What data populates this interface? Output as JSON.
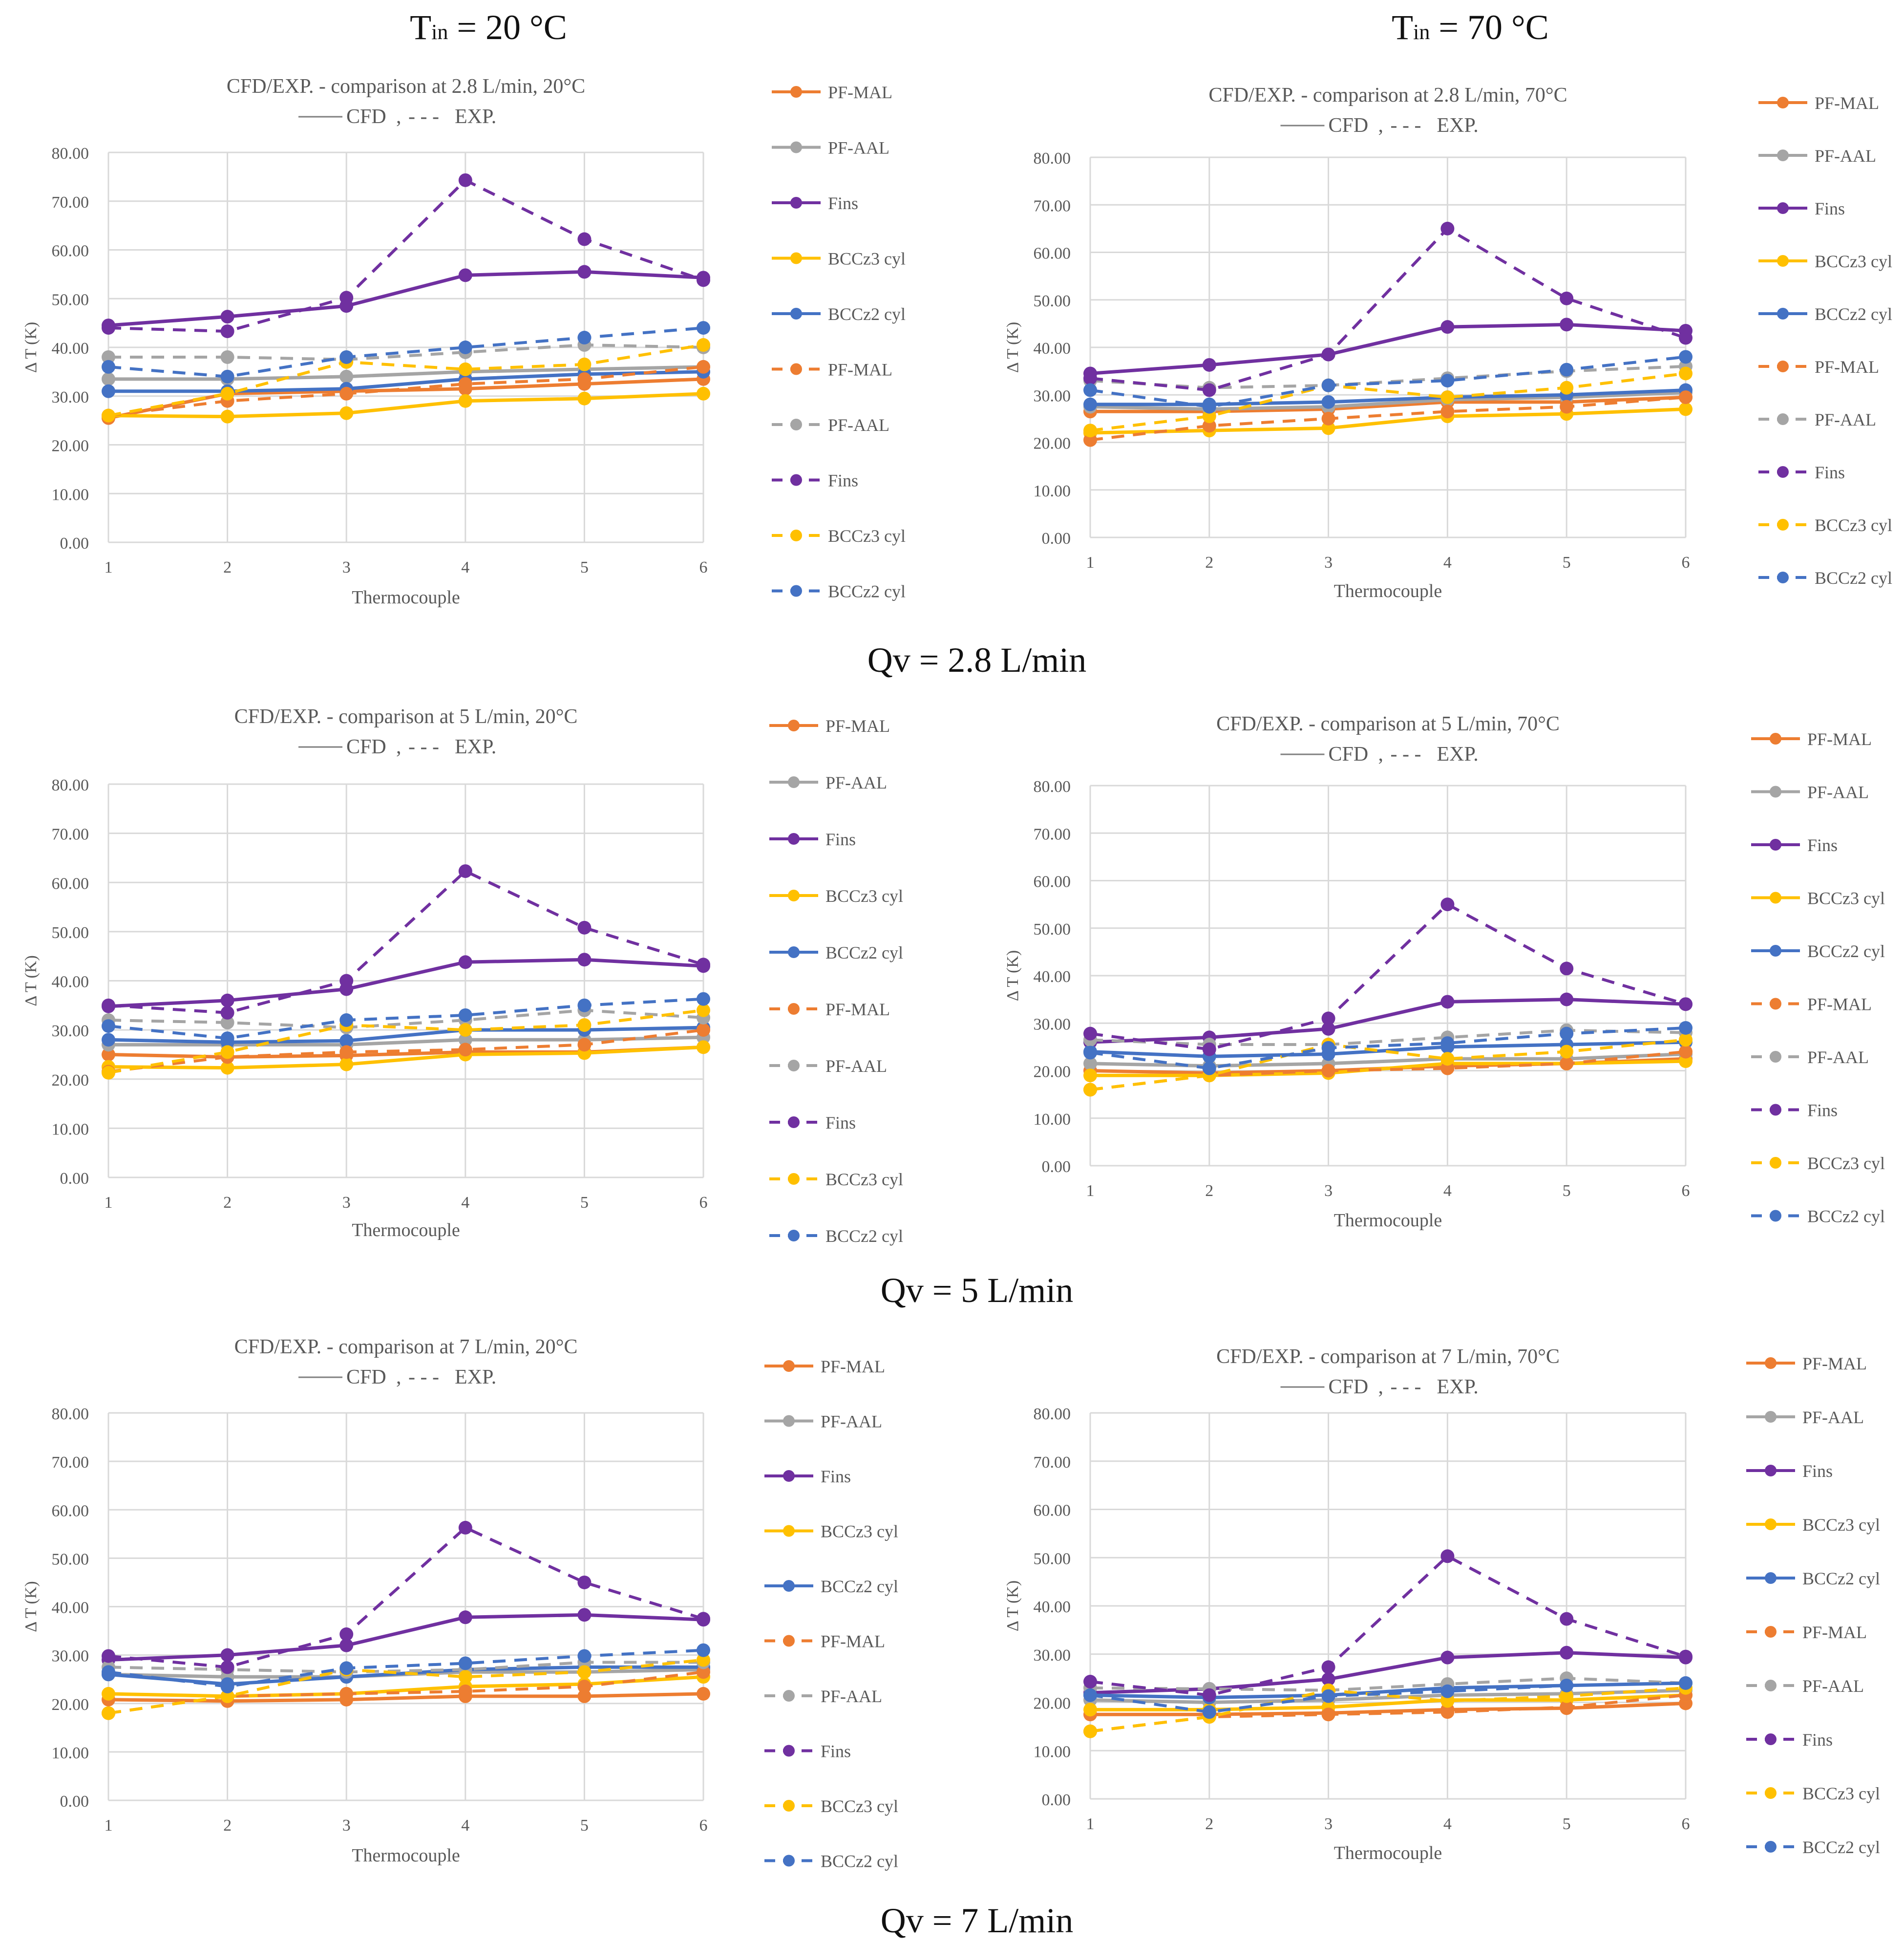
{
  "column_headers": [
    {
      "prefix": "T",
      "subscript": "in",
      "suffix": " = 20 °C"
    },
    {
      "prefix": "T",
      "subscript": "in",
      "suffix": " = 70 °C"
    }
  ],
  "row_labels": [
    "Qv = 2.8 L/min",
    "Qv = 5 L/min",
    "Qv = 7 L/min"
  ],
  "style": {
    "series_colors": {
      "PF-MAL": "#ED7D31",
      "PF-AAL": "#A5A5A5",
      "Fins": "#7030A0",
      "BCCz3 cyl": "#FFC000",
      "BCCz2 cyl": "#4472C4"
    },
    "grid_color": "#D9D9D9",
    "text_color": "#595959"
  },
  "chart_data": [
    {
      "type": "line",
      "title": "CFD/EXP. - comparison at 2.8 L/min, 20°C",
      "subtitle_cfd": "CFD",
      "subtitle_exp": "EXP.",
      "subtitle_sep": ",",
      "subtitle_dash_glyph": "- - -",
      "xlabel": "Thermocouple",
      "ylabel": "Δ T (K)",
      "x": [
        1,
        2,
        3,
        4,
        5,
        6
      ],
      "ylim": [
        0,
        80
      ],
      "yticks": [
        "0.00",
        "10.00",
        "20.00",
        "30.00",
        "40.00",
        "50.00",
        "60.00",
        "70.00",
        "80.00"
      ],
      "legend_position": "right",
      "series": [
        {
          "name": "PF-MAL",
          "style": "CFD",
          "values": [
            25.5,
            30.5,
            31.0,
            31.5,
            32.5,
            33.5
          ]
        },
        {
          "name": "PF-AAL",
          "style": "CFD",
          "values": [
            33.5,
            33.5,
            34.0,
            35.0,
            35.5,
            36.0
          ]
        },
        {
          "name": "Fins",
          "style": "CFD",
          "values": [
            44.5,
            46.3,
            48.5,
            54.8,
            55.5,
            54.3
          ]
        },
        {
          "name": "BCCz3 cyl",
          "style": "CFD",
          "values": [
            26.0,
            25.8,
            26.5,
            29.0,
            29.5,
            30.5
          ]
        },
        {
          "name": "BCCz2 cyl",
          "style": "CFD",
          "values": [
            31.0,
            31.0,
            31.5,
            33.5,
            34.5,
            35.0
          ]
        },
        {
          "name": "PF-MAL",
          "style": "EXP",
          "values": [
            26.0,
            29.0,
            30.5,
            32.5,
            33.5,
            36.0
          ]
        },
        {
          "name": "PF-AAL",
          "style": "EXP",
          "values": [
            38.0,
            38.0,
            37.5,
            39.0,
            40.5,
            40.0
          ]
        },
        {
          "name": "Fins",
          "style": "EXP",
          "values": [
            44.0,
            43.3,
            50.2,
            74.3,
            62.2,
            53.8
          ]
        },
        {
          "name": "BCCz3 cyl",
          "style": "EXP",
          "values": [
            26.0,
            30.5,
            37.0,
            35.5,
            36.5,
            40.5
          ]
        },
        {
          "name": "BCCz2 cyl",
          "style": "EXP",
          "values": [
            36.0,
            34.0,
            38.0,
            40.0,
            42.0,
            44.0
          ]
        }
      ]
    },
    {
      "type": "line",
      "title": "CFD/EXP. - comparison at 2.8 L/min, 70°C",
      "subtitle_cfd": "CFD",
      "subtitle_exp": "EXP.",
      "subtitle_sep": ",",
      "subtitle_dash_glyph": "- - -",
      "xlabel": "Thermocouple",
      "ylabel": "Δ T (K)",
      "x": [
        1,
        2,
        3,
        4,
        5,
        6
      ],
      "ylim": [
        0,
        80
      ],
      "yticks": [
        "0.00",
        "10.00",
        "20.00",
        "30.00",
        "40.00",
        "50.00",
        "60.00",
        "70.00",
        "80.00"
      ],
      "legend_position": "right",
      "series": [
        {
          "name": "PF-MAL",
          "style": "CFD",
          "values": [
            26.5,
            26.5,
            27.0,
            28.5,
            28.5,
            29.5
          ]
        },
        {
          "name": "PF-AAL",
          "style": "CFD",
          "values": [
            27.5,
            27.0,
            27.5,
            29.0,
            29.5,
            30.5
          ]
        },
        {
          "name": "Fins",
          "style": "CFD",
          "values": [
            34.5,
            36.3,
            38.5,
            44.3,
            44.8,
            43.5
          ]
        },
        {
          "name": "BCCz3 cyl",
          "style": "CFD",
          "values": [
            22.0,
            22.5,
            23.0,
            25.5,
            26.0,
            27.0
          ]
        },
        {
          "name": "BCCz2 cyl",
          "style": "CFD",
          "values": [
            28.0,
            28.0,
            28.5,
            29.5,
            30.0,
            31.0
          ]
        },
        {
          "name": "PF-MAL",
          "style": "EXP",
          "values": [
            20.5,
            23.5,
            25.0,
            26.5,
            27.5,
            29.5
          ]
        },
        {
          "name": "PF-AAL",
          "style": "EXP",
          "values": [
            33.0,
            31.5,
            32.0,
            33.5,
            35.0,
            36.0
          ]
        },
        {
          "name": "Fins",
          "style": "EXP",
          "values": [
            33.5,
            31.0,
            38.5,
            65.0,
            50.3,
            42.0
          ]
        },
        {
          "name": "BCCz3 cyl",
          "style": "EXP",
          "values": [
            22.5,
            25.5,
            32.0,
            29.5,
            31.5,
            34.5
          ]
        },
        {
          "name": "BCCz2 cyl",
          "style": "EXP",
          "values": [
            31.0,
            27.5,
            32.0,
            33.0,
            35.3,
            38.0
          ]
        }
      ]
    },
    {
      "type": "line",
      "title": "CFD/EXP. - comparison at 5 L/min, 20°C",
      "subtitle_cfd": "CFD",
      "subtitle_exp": "EXP.",
      "subtitle_sep": ",",
      "subtitle_dash_glyph": "- - -",
      "xlabel": "Thermocouple",
      "ylabel": "Δ T (K)",
      "x": [
        1,
        2,
        3,
        4,
        5,
        6
      ],
      "ylim": [
        0,
        80
      ],
      "yticks": [
        "0.00",
        "10.00",
        "20.00",
        "30.00",
        "40.00",
        "50.00",
        "60.00",
        "70.00",
        "80.00"
      ],
      "legend_position": "right",
      "series": [
        {
          "name": "PF-MAL",
          "style": "CFD",
          "values": [
            25.0,
            24.5,
            24.8,
            25.5,
            25.5,
            26.5
          ]
        },
        {
          "name": "PF-AAL",
          "style": "CFD",
          "values": [
            27.0,
            27.0,
            27.0,
            28.0,
            28.0,
            28.5
          ]
        },
        {
          "name": "Fins",
          "style": "CFD",
          "values": [
            34.8,
            36.0,
            38.3,
            43.8,
            44.3,
            43.0
          ]
        },
        {
          "name": "BCCz3 cyl",
          "style": "CFD",
          "values": [
            22.5,
            22.3,
            23.0,
            25.0,
            25.3,
            26.5
          ]
        },
        {
          "name": "BCCz2 cyl",
          "style": "CFD",
          "values": [
            28.0,
            27.5,
            27.8,
            30.0,
            30.0,
            30.5
          ]
        },
        {
          "name": "PF-MAL",
          "style": "EXP",
          "values": [
            21.5,
            24.5,
            25.5,
            26.0,
            27.0,
            30.0
          ]
        },
        {
          "name": "PF-AAL",
          "style": "EXP",
          "values": [
            32.0,
            31.5,
            30.5,
            32.0,
            34.0,
            32.5
          ]
        },
        {
          "name": "Fins",
          "style": "EXP",
          "values": [
            35.0,
            33.5,
            40.0,
            62.3,
            50.8,
            43.3
          ]
        },
        {
          "name": "BCCz3 cyl",
          "style": "EXP",
          "values": [
            21.3,
            25.5,
            31.0,
            30.0,
            31.0,
            34.0
          ]
        },
        {
          "name": "BCCz2 cyl",
          "style": "EXP",
          "values": [
            30.8,
            28.3,
            32.0,
            33.0,
            35.0,
            36.3
          ]
        }
      ]
    },
    {
      "type": "line",
      "title": "CFD/EXP. - comparison at 5 L/min, 70°C",
      "subtitle_cfd": "CFD",
      "subtitle_exp": "EXP.",
      "subtitle_sep": ",",
      "subtitle_dash_glyph": "- - -",
      "xlabel": "Thermocouple",
      "ylabel": "Δ T (K)",
      "x": [
        1,
        2,
        3,
        4,
        5,
        6
      ],
      "ylim": [
        0,
        80
      ],
      "yticks": [
        "0.00",
        "10.00",
        "20.00",
        "30.00",
        "40.00",
        "50.00",
        "60.00",
        "70.00",
        "80.00"
      ],
      "legend_position": "right",
      "series": [
        {
          "name": "PF-MAL",
          "style": "CFD",
          "values": [
            20.0,
            19.5,
            20.0,
            21.0,
            21.5,
            22.5
          ]
        },
        {
          "name": "PF-AAL",
          "style": "CFD",
          "values": [
            21.5,
            21.0,
            21.5,
            22.5,
            22.5,
            23.5
          ]
        },
        {
          "name": "Fins",
          "style": "CFD",
          "values": [
            26.0,
            27.0,
            28.8,
            34.5,
            35.0,
            34.0
          ]
        },
        {
          "name": "BCCz3 cyl",
          "style": "CFD",
          "values": [
            19.0,
            19.0,
            19.5,
            21.5,
            21.5,
            22.0
          ]
        },
        {
          "name": "BCCz2 cyl",
          "style": "CFD",
          "values": [
            24.0,
            23.0,
            23.5,
            25.0,
            25.5,
            26.0
          ]
        },
        {
          "name": "PF-MAL",
          "style": "EXP",
          "values": [
            16.0,
            19.0,
            20.0,
            20.5,
            21.5,
            24.0
          ]
        },
        {
          "name": "PF-AAL",
          "style": "EXP",
          "values": [
            26.5,
            25.5,
            25.5,
            27.0,
            28.5,
            28.0
          ]
        },
        {
          "name": "Fins",
          "style": "EXP",
          "values": [
            27.8,
            24.5,
            31.0,
            55.0,
            41.5,
            34.0
          ]
        },
        {
          "name": "BCCz3 cyl",
          "style": "EXP",
          "values": [
            16.0,
            19.0,
            25.5,
            22.5,
            24.0,
            26.5
          ]
        },
        {
          "name": "BCCz2 cyl",
          "style": "EXP",
          "values": [
            23.8,
            20.5,
            24.8,
            25.8,
            27.8,
            29.0
          ]
        }
      ]
    },
    {
      "type": "line",
      "title": "CFD/EXP. - comparison at 7 L/min, 20°C",
      "subtitle_cfd": "CFD",
      "subtitle_exp": "EXP.",
      "subtitle_sep": ",",
      "subtitle_dash_glyph": "- - -",
      "xlabel": "Thermocouple",
      "ylabel": "Δ T (K)",
      "x": [
        1,
        2,
        3,
        4,
        5,
        6
      ],
      "ylim": [
        0,
        80
      ],
      "yticks": [
        "0.00",
        "10.00",
        "20.00",
        "30.00",
        "40.00",
        "50.00",
        "60.00",
        "70.00",
        "80.00"
      ],
      "legend_position": "right",
      "series": [
        {
          "name": "PF-MAL",
          "style": "CFD",
          "values": [
            20.8,
            20.5,
            20.8,
            21.5,
            21.5,
            22.0
          ]
        },
        {
          "name": "PF-AAL",
          "style": "CFD",
          "values": [
            26.0,
            25.5,
            25.5,
            26.5,
            26.5,
            27.0
          ]
        },
        {
          "name": "Fins",
          "style": "CFD",
          "values": [
            29.0,
            30.0,
            32.0,
            37.8,
            38.3,
            37.3
          ]
        },
        {
          "name": "BCCz3 cyl",
          "style": "CFD",
          "values": [
            22.0,
            21.5,
            22.0,
            23.5,
            24.0,
            25.5
          ]
        },
        {
          "name": "BCCz2 cyl",
          "style": "CFD",
          "values": [
            26.0,
            24.0,
            25.5,
            27.0,
            27.5,
            27.5
          ]
        },
        {
          "name": "PF-MAL",
          "style": "EXP",
          "values": [
            18.0,
            21.5,
            22.0,
            22.5,
            23.5,
            26.5
          ]
        },
        {
          "name": "PF-AAL",
          "style": "EXP",
          "values": [
            27.5,
            27.0,
            26.5,
            27.0,
            28.5,
            28.5
          ]
        },
        {
          "name": "Fins",
          "style": "EXP",
          "values": [
            29.8,
            27.5,
            34.3,
            56.3,
            45.0,
            37.5
          ]
        },
        {
          "name": "BCCz3 cyl",
          "style": "EXP",
          "values": [
            18.0,
            21.5,
            27.0,
            25.5,
            26.5,
            29.0
          ]
        },
        {
          "name": "BCCz2 cyl",
          "style": "EXP",
          "values": [
            26.5,
            23.5,
            27.3,
            28.3,
            29.8,
            31.0
          ]
        }
      ]
    },
    {
      "type": "line",
      "title": "CFD/EXP. - comparison at 7 L/min, 70°C",
      "subtitle_cfd": "CFD",
      "subtitle_exp": "EXP.",
      "subtitle_sep": ",",
      "subtitle_dash_glyph": "- - -",
      "xlabel": "Thermocouple",
      "ylabel": "Δ T (K)",
      "x": [
        1,
        2,
        3,
        4,
        5,
        6
      ],
      "ylim": [
        0,
        80
      ],
      "yticks": [
        "0.00",
        "10.00",
        "20.00",
        "30.00",
        "40.00",
        "50.00",
        "60.00",
        "70.00",
        "80.00"
      ],
      "legend_position": "right",
      "series": [
        {
          "name": "PF-MAL",
          "style": "CFD",
          "values": [
            17.5,
            17.5,
            17.8,
            18.5,
            18.8,
            19.8
          ]
        },
        {
          "name": "PF-AAL",
          "style": "CFD",
          "values": [
            20.5,
            20.0,
            20.5,
            21.5,
            21.8,
            22.5
          ]
        },
        {
          "name": "Fins",
          "style": "CFD",
          "values": [
            22.0,
            22.8,
            24.8,
            29.3,
            30.3,
            29.3
          ]
        },
        {
          "name": "BCCz3 cyl",
          "style": "CFD",
          "values": [
            18.5,
            18.5,
            19.0,
            20.5,
            20.5,
            21.5
          ]
        },
        {
          "name": "BCCz2 cyl",
          "style": "CFD",
          "values": [
            21.5,
            21.0,
            21.5,
            23.0,
            23.5,
            24.0
          ]
        },
        {
          "name": "PF-MAL",
          "style": "EXP",
          "values": [
            14.0,
            17.0,
            17.5,
            18.0,
            19.0,
            21.5
          ]
        },
        {
          "name": "PF-AAL",
          "style": "EXP",
          "values": [
            23.0,
            22.8,
            22.5,
            23.8,
            25.0,
            24.0
          ]
        },
        {
          "name": "Fins",
          "style": "EXP",
          "values": [
            24.3,
            21.5,
            27.3,
            50.3,
            37.3,
            29.5
          ]
        },
        {
          "name": "BCCz3 cyl",
          "style": "EXP",
          "values": [
            14.0,
            17.0,
            22.5,
            20.3,
            21.3,
            23.0
          ]
        },
        {
          "name": "BCCz2 cyl",
          "style": "EXP",
          "values": [
            21.5,
            18.0,
            21.3,
            22.3,
            23.5,
            24.0
          ]
        }
      ]
    }
  ]
}
